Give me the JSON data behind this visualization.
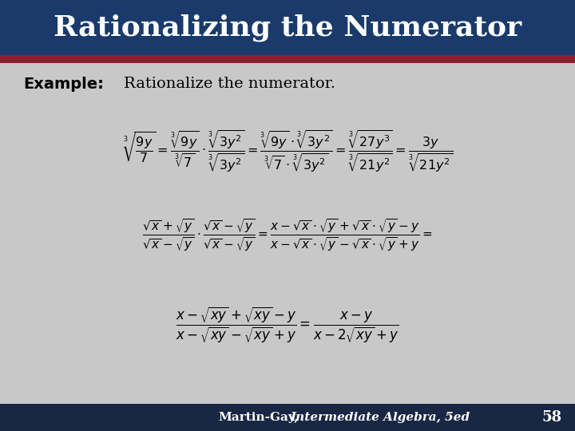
{
  "title": "Rationalizing the Numerator",
  "title_bg": "#1a3a6b",
  "title_color": "#ffffff",
  "accent_color": "#8b2030",
  "bg_color": "#c8c8c8",
  "footer_bg": "#1a2744",
  "footer_num": "58",
  "example_bold": "Example:",
  "example_text": "Rationalize the numerator.",
  "eq1_fontsize": 11.5,
  "eq2_fontsize": 11.0,
  "eq3_fontsize": 12.0,
  "title_fontsize": 26,
  "example_fontsize": 14,
  "footer_fontsize": 11
}
